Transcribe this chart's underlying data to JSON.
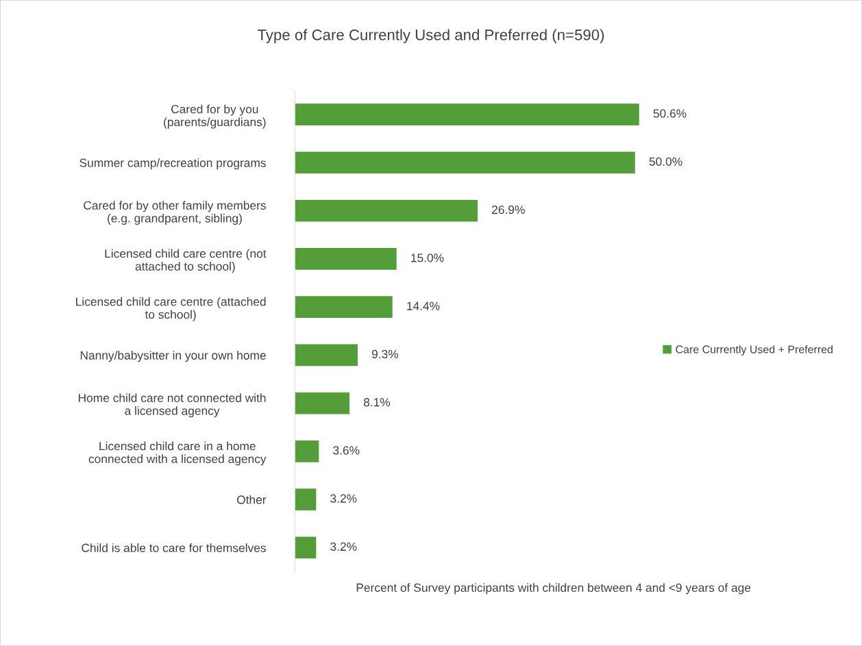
{
  "chart_data": {
    "type": "bar",
    "orientation": "horizontal",
    "title": "Type of Care Currently Used and Preferred (n=590)",
    "xlabel": "Percent of Survey participants with children between 4 and <9 years of age",
    "categories": [
      "Cared for by you\n(parents/guardians)",
      "Summer camp/recreation programs",
      "Cared for by other family members\n(e.g. grandparent, sibling)",
      "Licensed child care centre (not\nattached to school)",
      "Licensed child care centre (attached\nto school)",
      "Nanny/babysitter in your own home",
      "Home child care not connected with\na licensed agency",
      "Licensed child care in a home\nconnected with a licensed agency",
      "Other",
      "Child is able to care for themselves"
    ],
    "series": [
      {
        "name": "Care Currently Used + Preferred",
        "color": "#549e39",
        "values": [
          50.6,
          50.0,
          26.9,
          15.0,
          14.4,
          9.3,
          8.1,
          3.6,
          3.2,
          3.2
        ],
        "value_labels": [
          "50.6%",
          "50.0%",
          "26.9%",
          "15.0%",
          "14.4%",
          "9.3%",
          "8.1%",
          "3.6%",
          "3.2%",
          "3.2%"
        ]
      }
    ],
    "legend": "right"
  }
}
